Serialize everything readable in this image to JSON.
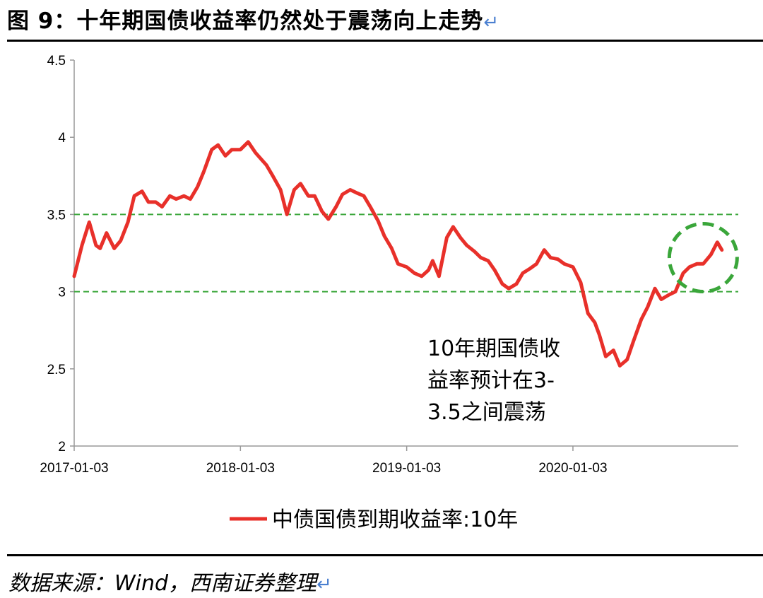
{
  "figure": {
    "title": "图 9：十年期国债收益率仍然处于震荡向上走势",
    "return_mark": "↵",
    "source": "数据来源：Wind，西南证券整理"
  },
  "colors": {
    "line": "#e8302a",
    "band": "#3aa63a",
    "axis": "#999999",
    "rule": "#000000"
  },
  "chart_data": {
    "type": "line",
    "title": "",
    "xlabel": "",
    "ylabel": "",
    "ylim": [
      2,
      4.5
    ],
    "xlim": [
      "2017-01-03",
      "2020-12-31"
    ],
    "y_ticks": [
      "4.5",
      "4",
      "3.5",
      "3",
      "2.5",
      "2"
    ],
    "x_ticks": [
      "2017-01-03",
      "2018-01-03",
      "2019-01-03",
      "2020-01-03"
    ],
    "grid": false,
    "legend": "bottom-center",
    "reference_lines": [
      3.5,
      3.0
    ],
    "annotation": [
      "10年期国债收",
      "益率预计在3-",
      "3.5之间震荡"
    ],
    "highlight_circle": {
      "center": [
        "2020-10-15",
        3.22
      ],
      "note": ""
    },
    "series": [
      {
        "name": "中债国债到期收益率:10年",
        "x": [
          "2017-01-03",
          "2017-01-20",
          "2017-02-05",
          "2017-02-20",
          "2017-03-01",
          "2017-03-15",
          "2017-04-01",
          "2017-04-15",
          "2017-05-01",
          "2017-05-15",
          "2017-06-01",
          "2017-06-15",
          "2017-07-01",
          "2017-07-15",
          "2017-08-01",
          "2017-08-15",
          "2017-09-01",
          "2017-09-15",
          "2017-10-01",
          "2017-10-15",
          "2017-11-01",
          "2017-11-15",
          "2017-12-01",
          "2017-12-15",
          "2018-01-03",
          "2018-01-20",
          "2018-02-05",
          "2018-02-20",
          "2018-03-01",
          "2018-03-15",
          "2018-04-01",
          "2018-04-15",
          "2018-05-01",
          "2018-05-15",
          "2018-06-01",
          "2018-06-15",
          "2018-07-01",
          "2018-07-15",
          "2018-08-01",
          "2018-08-15",
          "2018-09-01",
          "2018-09-15",
          "2018-10-01",
          "2018-10-15",
          "2018-11-01",
          "2018-11-15",
          "2018-12-01",
          "2018-12-15",
          "2019-01-03",
          "2019-01-20",
          "2019-02-05",
          "2019-02-20",
          "2019-03-01",
          "2019-03-15",
          "2019-04-01",
          "2019-04-15",
          "2019-05-01",
          "2019-05-15",
          "2019-06-01",
          "2019-06-15",
          "2019-07-01",
          "2019-07-15",
          "2019-08-01",
          "2019-08-15",
          "2019-09-01",
          "2019-09-15",
          "2019-10-01",
          "2019-10-15",
          "2019-11-01",
          "2019-11-15",
          "2019-12-01",
          "2019-12-15",
          "2020-01-03",
          "2020-01-20",
          "2020-02-05",
          "2020-02-20",
          "2020-03-01",
          "2020-03-15",
          "2020-04-01",
          "2020-04-15",
          "2020-05-01",
          "2020-05-15",
          "2020-06-01",
          "2020-06-15",
          "2020-07-01",
          "2020-07-15",
          "2020-08-01",
          "2020-08-15",
          "2020-09-01",
          "2020-09-15",
          "2020-10-01",
          "2020-10-15",
          "2020-11-01",
          "2020-11-15",
          "2020-11-25"
        ],
        "values": [
          3.1,
          3.3,
          3.45,
          3.3,
          3.28,
          3.38,
          3.28,
          3.33,
          3.45,
          3.62,
          3.65,
          3.58,
          3.58,
          3.55,
          3.62,
          3.6,
          3.62,
          3.6,
          3.68,
          3.78,
          3.92,
          3.95,
          3.88,
          3.92,
          3.92,
          3.97,
          3.9,
          3.85,
          3.82,
          3.75,
          3.66,
          3.5,
          3.66,
          3.7,
          3.62,
          3.62,
          3.52,
          3.47,
          3.55,
          3.63,
          3.66,
          3.64,
          3.62,
          3.55,
          3.46,
          3.36,
          3.28,
          3.18,
          3.16,
          3.12,
          3.1,
          3.14,
          3.2,
          3.1,
          3.35,
          3.42,
          3.35,
          3.3,
          3.26,
          3.22,
          3.2,
          3.14,
          3.05,
          3.02,
          3.05,
          3.12,
          3.15,
          3.18,
          3.27,
          3.22,
          3.21,
          3.18,
          3.16,
          3.06,
          2.86,
          2.8,
          2.72,
          2.58,
          2.62,
          2.52,
          2.56,
          2.68,
          2.82,
          2.9,
          3.02,
          2.95,
          2.98,
          3.0,
          3.12,
          3.16,
          3.18,
          3.18,
          3.24,
          3.32,
          3.27
        ]
      }
    ]
  }
}
